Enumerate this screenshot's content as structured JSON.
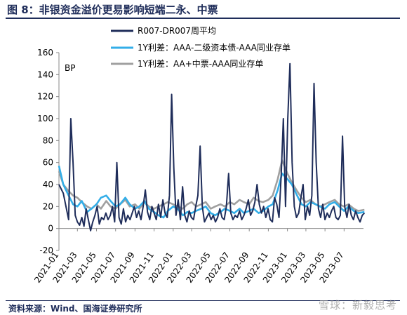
{
  "title": "图 8：非银资金溢价更易影响短端二永、中票",
  "source": "资料来源：Wind、国海证券研究所",
  "watermark": "雪球：新毅思考",
  "chart_data": {
    "type": "line",
    "ylabel": "BP",
    "ylim": [
      -20,
      160
    ],
    "yticks": [
      -20,
      0,
      20,
      40,
      60,
      80,
      100,
      120,
      140,
      160
    ],
    "xlim": [
      "2021-01",
      "2023-09"
    ],
    "xticks": [
      "2021-01",
      "2021-03",
      "2021-05",
      "2021-07",
      "2021-09",
      "2021-11",
      "2022-01",
      "2022-03",
      "2022-05",
      "2022-07",
      "2022-09",
      "2022-11",
      "2023-01",
      "2023-03",
      "2023-05",
      "2023-07"
    ],
    "grid": false,
    "legend_position": "top",
    "series": [
      {
        "name": "R007-DR007周平均",
        "color": "#1f2d5a",
        "points": [
          [
            "2021-01-01",
            40
          ],
          [
            "2021-01-15",
            32
          ],
          [
            "2021-02-01",
            8
          ],
          [
            "2021-02-08",
            100
          ],
          [
            "2021-02-15",
            60
          ],
          [
            "2021-02-22",
            12
          ],
          [
            "2021-03-01",
            6
          ],
          [
            "2021-03-08",
            3
          ],
          [
            "2021-03-15",
            10
          ],
          [
            "2021-03-22",
            2
          ],
          [
            "2021-03-29",
            18
          ],
          [
            "2021-04-05",
            8
          ],
          [
            "2021-04-12",
            -2
          ],
          [
            "2021-04-19",
            6
          ],
          [
            "2021-04-26",
            12
          ],
          [
            "2021-05-03",
            20
          ],
          [
            "2021-05-10",
            4
          ],
          [
            "2021-05-17",
            10
          ],
          [
            "2021-05-24",
            8
          ],
          [
            "2021-05-31",
            14
          ],
          [
            "2021-06-07",
            8
          ],
          [
            "2021-06-14",
            12
          ],
          [
            "2021-06-21",
            20
          ],
          [
            "2021-06-28",
            6
          ],
          [
            "2021-07-05",
            60
          ],
          [
            "2021-07-12",
            10
          ],
          [
            "2021-07-19",
            4
          ],
          [
            "2021-07-26",
            18
          ],
          [
            "2021-08-02",
            6
          ],
          [
            "2021-08-09",
            12
          ],
          [
            "2021-08-16",
            8
          ],
          [
            "2021-08-23",
            14
          ],
          [
            "2021-08-30",
            20
          ],
          [
            "2021-09-06",
            10
          ],
          [
            "2021-09-13",
            16
          ],
          [
            "2021-09-20",
            8
          ],
          [
            "2021-09-27",
            20
          ],
          [
            "2021-10-04",
            35
          ],
          [
            "2021-10-11",
            15
          ],
          [
            "2021-10-18",
            8
          ],
          [
            "2021-10-25",
            20
          ],
          [
            "2021-11-01",
            14
          ],
          [
            "2021-11-08",
            8
          ],
          [
            "2021-11-15",
            22
          ],
          [
            "2021-11-22",
            10
          ],
          [
            "2021-11-29",
            26
          ],
          [
            "2021-12-06",
            14
          ],
          [
            "2021-12-13",
            10
          ],
          [
            "2021-12-20",
            30
          ],
          [
            "2021-12-27",
            122
          ],
          [
            "2022-01-03",
            55
          ],
          [
            "2022-01-10",
            12
          ],
          [
            "2022-01-17",
            26
          ],
          [
            "2022-01-24",
            8
          ],
          [
            "2022-01-31",
            38
          ],
          [
            "2022-02-07",
            12
          ],
          [
            "2022-02-14",
            6
          ],
          [
            "2022-02-21",
            16
          ],
          [
            "2022-02-28",
            10
          ],
          [
            "2022-03-07",
            8
          ],
          [
            "2022-03-14",
            20
          ],
          [
            "2022-03-21",
            30
          ],
          [
            "2022-03-28",
            75
          ],
          [
            "2022-04-04",
            20
          ],
          [
            "2022-04-11",
            6
          ],
          [
            "2022-04-18",
            10
          ],
          [
            "2022-04-25",
            14
          ],
          [
            "2022-05-02",
            8
          ],
          [
            "2022-05-09",
            12
          ],
          [
            "2022-05-16",
            6
          ],
          [
            "2022-05-23",
            10
          ],
          [
            "2022-05-30",
            18
          ],
          [
            "2022-06-06",
            10
          ],
          [
            "2022-06-13",
            8
          ],
          [
            "2022-06-20",
            20
          ],
          [
            "2022-06-27",
            50
          ],
          [
            "2022-07-04",
            14
          ],
          [
            "2022-07-11",
            8
          ],
          [
            "2022-07-18",
            12
          ],
          [
            "2022-07-25",
            10
          ],
          [
            "2022-08-01",
            16
          ],
          [
            "2022-08-08",
            8
          ],
          [
            "2022-08-15",
            12
          ],
          [
            "2022-08-22",
            18
          ],
          [
            "2022-08-29",
            26
          ],
          [
            "2022-09-05",
            12
          ],
          [
            "2022-09-12",
            16
          ],
          [
            "2022-09-19",
            24
          ],
          [
            "2022-09-26",
            40
          ],
          [
            "2022-10-03",
            22
          ],
          [
            "2022-10-10",
            14
          ],
          [
            "2022-10-17",
            20
          ],
          [
            "2022-10-24",
            10
          ],
          [
            "2022-10-31",
            18
          ],
          [
            "2022-11-07",
            8
          ],
          [
            "2022-11-14",
            6
          ],
          [
            "2022-11-21",
            28
          ],
          [
            "2022-11-28",
            22
          ],
          [
            "2022-12-05",
            10
          ],
          [
            "2022-12-12",
            48
          ],
          [
            "2022-12-19",
            100
          ],
          [
            "2022-12-26",
            20
          ],
          [
            "2023-01-02",
            100
          ],
          [
            "2023-01-09",
            150
          ],
          [
            "2023-01-16",
            60
          ],
          [
            "2023-01-23",
            20
          ],
          [
            "2023-01-30",
            10
          ],
          [
            "2023-02-06",
            14
          ],
          [
            "2023-02-13",
            28
          ],
          [
            "2023-02-20",
            40
          ],
          [
            "2023-02-27",
            8
          ],
          [
            "2023-03-06",
            20
          ],
          [
            "2023-03-13",
            12
          ],
          [
            "2023-03-20",
            30
          ],
          [
            "2023-03-27",
            132
          ],
          [
            "2023-04-03",
            60
          ],
          [
            "2023-04-10",
            18
          ],
          [
            "2023-04-17",
            10
          ],
          [
            "2023-04-24",
            22
          ],
          [
            "2023-05-01",
            8
          ],
          [
            "2023-05-08",
            14
          ],
          [
            "2023-05-15",
            10
          ],
          [
            "2023-05-22",
            16
          ],
          [
            "2023-05-29",
            20
          ],
          [
            "2023-06-05",
            10
          ],
          [
            "2023-06-12",
            8
          ],
          [
            "2023-06-19",
            12
          ],
          [
            "2023-06-26",
            84
          ],
          [
            "2023-07-03",
            20
          ],
          [
            "2023-07-10",
            10
          ],
          [
            "2023-07-17",
            22
          ],
          [
            "2023-07-24",
            12
          ],
          [
            "2023-07-31",
            8
          ],
          [
            "2023-08-07",
            16
          ],
          [
            "2023-08-14",
            10
          ],
          [
            "2023-08-21",
            6
          ],
          [
            "2023-08-28",
            12
          ],
          [
            "2023-09-04",
            14
          ]
        ]
      },
      {
        "name": "1Y利差：AAA-二级资本债-AAA同业存单",
        "color": "#33aee8",
        "points": [
          [
            "2021-01-01",
            57
          ],
          [
            "2021-01-15",
            40
          ],
          [
            "2021-02-01",
            30
          ],
          [
            "2021-02-15",
            22
          ],
          [
            "2021-03-01",
            20
          ],
          [
            "2021-03-15",
            25
          ],
          [
            "2021-04-01",
            15
          ],
          [
            "2021-04-15",
            18
          ],
          [
            "2021-05-01",
            22
          ],
          [
            "2021-05-15",
            28
          ],
          [
            "2021-06-01",
            30
          ],
          [
            "2021-06-15",
            25
          ],
          [
            "2021-07-01",
            20
          ],
          [
            "2021-07-15",
            22
          ],
          [
            "2021-08-01",
            28
          ],
          [
            "2021-08-15",
            22
          ],
          [
            "2021-09-01",
            18
          ],
          [
            "2021-09-15",
            20
          ],
          [
            "2021-10-01",
            25
          ],
          [
            "2021-10-15",
            18
          ],
          [
            "2021-11-01",
            15
          ],
          [
            "2021-11-15",
            12
          ],
          [
            "2021-12-01",
            10
          ],
          [
            "2021-12-15",
            16
          ],
          [
            "2022-01-01",
            20
          ],
          [
            "2022-01-15",
            18
          ],
          [
            "2022-02-01",
            12
          ],
          [
            "2022-02-15",
            15
          ],
          [
            "2022-03-01",
            14
          ],
          [
            "2022-03-15",
            16
          ],
          [
            "2022-04-01",
            18
          ],
          [
            "2022-04-15",
            20
          ],
          [
            "2022-05-01",
            14
          ],
          [
            "2022-05-15",
            12
          ],
          [
            "2022-06-01",
            15
          ],
          [
            "2022-06-15",
            18
          ],
          [
            "2022-07-01",
            16
          ],
          [
            "2022-07-15",
            14
          ],
          [
            "2022-08-01",
            18
          ],
          [
            "2022-08-15",
            14
          ],
          [
            "2022-09-01",
            16
          ],
          [
            "2022-09-15",
            18
          ],
          [
            "2022-10-01",
            14
          ],
          [
            "2022-10-15",
            16
          ],
          [
            "2022-11-01",
            20
          ],
          [
            "2022-11-15",
            22
          ],
          [
            "2022-12-01",
            35
          ],
          [
            "2022-12-15",
            50
          ],
          [
            "2023-01-01",
            45
          ],
          [
            "2023-01-15",
            40
          ],
          [
            "2023-02-01",
            30
          ],
          [
            "2023-02-15",
            22
          ],
          [
            "2023-03-01",
            20
          ],
          [
            "2023-03-15",
            24
          ],
          [
            "2023-04-01",
            22
          ],
          [
            "2023-04-15",
            20
          ],
          [
            "2023-05-01",
            18
          ],
          [
            "2023-05-15",
            22
          ],
          [
            "2023-06-01",
            24
          ],
          [
            "2023-06-15",
            20
          ],
          [
            "2023-07-01",
            16
          ],
          [
            "2023-07-15",
            20
          ],
          [
            "2023-08-01",
            16
          ],
          [
            "2023-08-15",
            14
          ],
          [
            "2023-09-04",
            15
          ]
        ]
      },
      {
        "name": "1Y利差：AA+中票-AAA同业存单",
        "color": "#a0a0a0",
        "points": [
          [
            "2021-01-01",
            52
          ],
          [
            "2021-01-15",
            40
          ],
          [
            "2021-02-01",
            34
          ],
          [
            "2021-02-15",
            30
          ],
          [
            "2021-03-01",
            28
          ],
          [
            "2021-03-15",
            24
          ],
          [
            "2021-04-01",
            20
          ],
          [
            "2021-04-15",
            18
          ],
          [
            "2021-05-01",
            22
          ],
          [
            "2021-05-15",
            18
          ],
          [
            "2021-06-01",
            25
          ],
          [
            "2021-06-15",
            20
          ],
          [
            "2021-07-01",
            18
          ],
          [
            "2021-07-15",
            22
          ],
          [
            "2021-08-01",
            26
          ],
          [
            "2021-08-15",
            20
          ],
          [
            "2021-09-01",
            22
          ],
          [
            "2021-09-15",
            18
          ],
          [
            "2021-10-01",
            24
          ],
          [
            "2021-10-15",
            20
          ],
          [
            "2021-11-01",
            18
          ],
          [
            "2021-11-15",
            20
          ],
          [
            "2021-12-01",
            22
          ],
          [
            "2021-12-15",
            24
          ],
          [
            "2022-01-01",
            22
          ],
          [
            "2022-01-15",
            20
          ],
          [
            "2022-02-01",
            18
          ],
          [
            "2022-02-15",
            22
          ],
          [
            "2022-03-01",
            24
          ],
          [
            "2022-03-15",
            20
          ],
          [
            "2022-04-01",
            22
          ],
          [
            "2022-04-15",
            24
          ],
          [
            "2022-05-01",
            18
          ],
          [
            "2022-05-15",
            20
          ],
          [
            "2022-06-01",
            22
          ],
          [
            "2022-06-15",
            20
          ],
          [
            "2022-07-01",
            24
          ],
          [
            "2022-07-15",
            22
          ],
          [
            "2022-08-01",
            26
          ],
          [
            "2022-08-15",
            24
          ],
          [
            "2022-09-01",
            22
          ],
          [
            "2022-09-15",
            28
          ],
          [
            "2022-10-01",
            25
          ],
          [
            "2022-10-15",
            24
          ],
          [
            "2022-11-01",
            26
          ],
          [
            "2022-11-15",
            30
          ],
          [
            "2022-12-01",
            45
          ],
          [
            "2022-12-15",
            62
          ],
          [
            "2023-01-01",
            50
          ],
          [
            "2023-01-15",
            42
          ],
          [
            "2023-02-01",
            34
          ],
          [
            "2023-02-15",
            28
          ],
          [
            "2023-03-01",
            24
          ],
          [
            "2023-03-15",
            26
          ],
          [
            "2023-04-01",
            22
          ],
          [
            "2023-04-15",
            20
          ],
          [
            "2023-05-01",
            22
          ],
          [
            "2023-05-15",
            24
          ],
          [
            "2023-06-01",
            26
          ],
          [
            "2023-06-15",
            22
          ],
          [
            "2023-07-01",
            20
          ],
          [
            "2023-07-15",
            22
          ],
          [
            "2023-08-01",
            18
          ],
          [
            "2023-08-15",
            16
          ],
          [
            "2023-09-04",
            17
          ]
        ]
      }
    ]
  }
}
